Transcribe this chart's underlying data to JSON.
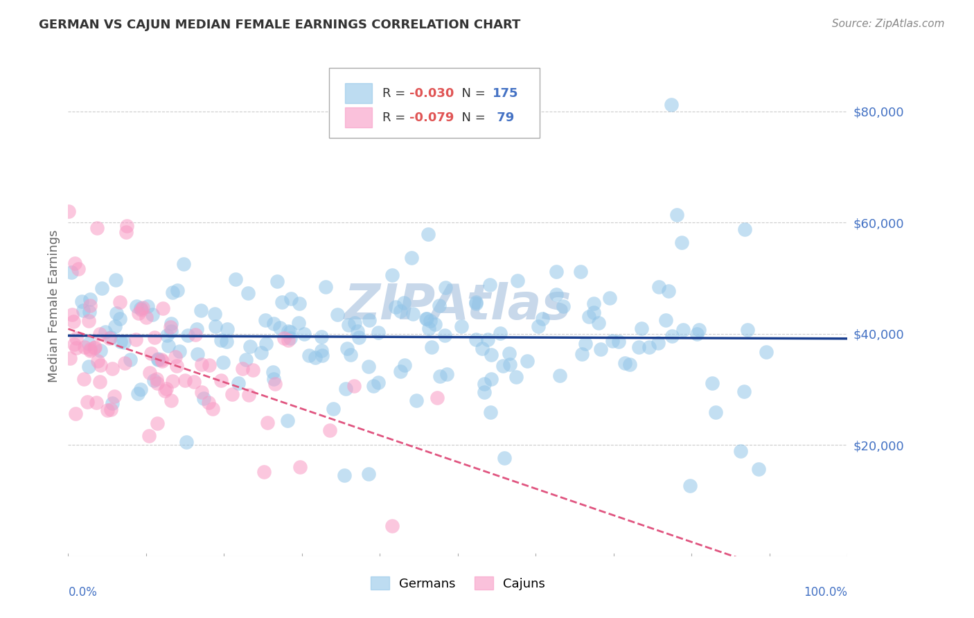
{
  "title": "GERMAN VS CAJUN MEDIAN FEMALE EARNINGS CORRELATION CHART",
  "source": "Source: ZipAtlas.com",
  "ylabel": "Median Female Earnings",
  "ytick_labels": [
    "$20,000",
    "$40,000",
    "$60,000",
    "$80,000"
  ],
  "ytick_values": [
    20000,
    40000,
    60000,
    80000
  ],
  "ymin": 0,
  "ymax": 90000,
  "xmin": 0.0,
  "xmax": 1.0,
  "legend_german_R": "-0.030",
  "legend_german_N": "175",
  "legend_cajun_R": "-0.079",
  "legend_cajun_N": " 79",
  "german_color": "#92c5e8",
  "cajun_color": "#f899c4",
  "trend_german_color": "#1a3f8f",
  "trend_cajun_color": "#e05580",
  "watermark": "ZIPAtlas",
  "watermark_color": "#c8d8ea",
  "background_color": "#ffffff",
  "grid_color": "#cccccc",
  "title_color": "#333333",
  "tick_label_color": "#4472c4",
  "legend_R_color": "#e05555",
  "legend_N_color": "#4472c4",
  "source_color": "#888888",
  "ylabel_color": "#666666"
}
